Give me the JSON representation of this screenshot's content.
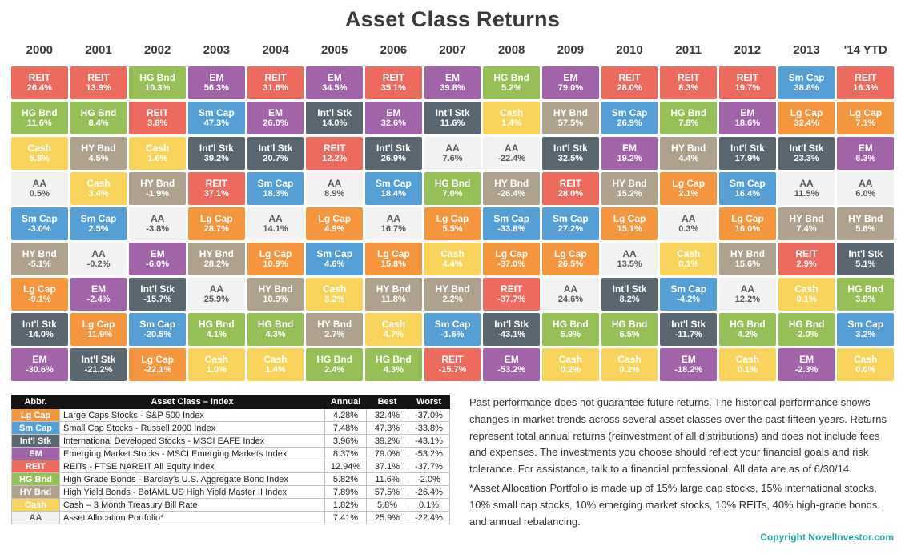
{
  "title": "Asset Class Returns",
  "asset_classes": {
    "Lg Cap": {
      "color": "#F5953D",
      "text": "#FFFFFF"
    },
    "Sm Cap": {
      "color": "#559FD6",
      "text": "#FFFFFF"
    },
    "Int'l Stk": {
      "color": "#5B6770",
      "text": "#FFFFFF"
    },
    "EM": {
      "color": "#A164A9",
      "text": "#FFFFFF"
    },
    "REIT": {
      "color": "#ED6A5E",
      "text": "#FFFFFF"
    },
    "HG Bnd": {
      "color": "#97BF58",
      "text": "#FFFFFF"
    },
    "HY Bnd": {
      "color": "#AEA28E",
      "text": "#FFFFFF"
    },
    "Cash": {
      "color": "#F9D45C",
      "text": "#FFFFFF"
    },
    "AA": {
      "color": "#F2F2F2",
      "text": "#595959"
    }
  },
  "chart_data": {
    "type": "table",
    "title": "Asset Class Returns",
    "years": [
      "2000",
      "2001",
      "2002",
      "2003",
      "2004",
      "2005",
      "2006",
      "2007",
      "2008",
      "2009",
      "2010",
      "2011",
      "2012",
      "2013",
      "'14 YTD"
    ],
    "columns": [
      {
        "year": "2000",
        "cells": [
          {
            "abbr": "REIT",
            "value": "26.4%"
          },
          {
            "abbr": "HG Bnd",
            "value": "11.6%"
          },
          {
            "abbr": "Cash",
            "value": "5.8%"
          },
          {
            "abbr": "AA",
            "value": "0.5%"
          },
          {
            "abbr": "Sm Cap",
            "value": "-3.0%"
          },
          {
            "abbr": "HY Bnd",
            "value": "-5.1%"
          },
          {
            "abbr": "Lg Cap",
            "value": "-9.1%"
          },
          {
            "abbr": "Int'l Stk",
            "value": "-14.0%"
          },
          {
            "abbr": "EM",
            "value": "-30.6%"
          }
        ]
      },
      {
        "year": "2001",
        "cells": [
          {
            "abbr": "REIT",
            "value": "13.9%"
          },
          {
            "abbr": "HG Bnd",
            "value": "8.4%"
          },
          {
            "abbr": "HY Bnd",
            "value": "4.5%"
          },
          {
            "abbr": "Cash",
            "value": "3.4%"
          },
          {
            "abbr": "Sm Cap",
            "value": "2.5%"
          },
          {
            "abbr": "AA",
            "value": "-0.2%"
          },
          {
            "abbr": "EM",
            "value": "-2.4%"
          },
          {
            "abbr": "Lg Cap",
            "value": "-11.9%"
          },
          {
            "abbr": "Int'l Stk",
            "value": "-21.2%"
          }
        ]
      },
      {
        "year": "2002",
        "cells": [
          {
            "abbr": "HG Bnd",
            "value": "10.3%"
          },
          {
            "abbr": "REIT",
            "value": "3.8%"
          },
          {
            "abbr": "Cash",
            "value": "1.6%"
          },
          {
            "abbr": "HY Bnd",
            "value": "-1.9%"
          },
          {
            "abbr": "AA",
            "value": "-3.8%"
          },
          {
            "abbr": "EM",
            "value": "-6.0%"
          },
          {
            "abbr": "Int'l Stk",
            "value": "-15.7%"
          },
          {
            "abbr": "Sm Cap",
            "value": "-20.5%"
          },
          {
            "abbr": "Lg Cap",
            "value": "-22.1%"
          }
        ]
      },
      {
        "year": "2003",
        "cells": [
          {
            "abbr": "EM",
            "value": "56.3%"
          },
          {
            "abbr": "Sm Cap",
            "value": "47.3%"
          },
          {
            "abbr": "Int'l Stk",
            "value": "39.2%"
          },
          {
            "abbr": "REIT",
            "value": "37.1%"
          },
          {
            "abbr": "Lg Cap",
            "value": "28.7%"
          },
          {
            "abbr": "HY Bnd",
            "value": "28.2%"
          },
          {
            "abbr": "AA",
            "value": "25.9%"
          },
          {
            "abbr": "HG Bnd",
            "value": "4.1%"
          },
          {
            "abbr": "Cash",
            "value": "1.0%"
          }
        ]
      },
      {
        "year": "2004",
        "cells": [
          {
            "abbr": "REIT",
            "value": "31.6%"
          },
          {
            "abbr": "EM",
            "value": "26.0%"
          },
          {
            "abbr": "Int'l Stk",
            "value": "20.7%"
          },
          {
            "abbr": "Sm Cap",
            "value": "18.3%"
          },
          {
            "abbr": "AA",
            "value": "14.1%"
          },
          {
            "abbr": "Lg Cap",
            "value": "10.9%"
          },
          {
            "abbr": "HY Bnd",
            "value": "10.9%"
          },
          {
            "abbr": "HG Bnd",
            "value": "4.3%"
          },
          {
            "abbr": "Cash",
            "value": "1.4%"
          }
        ]
      },
      {
        "year": "2005",
        "cells": [
          {
            "abbr": "EM",
            "value": "34.5%"
          },
          {
            "abbr": "Int'l Stk",
            "value": "14.0%"
          },
          {
            "abbr": "REIT",
            "value": "12.2%"
          },
          {
            "abbr": "AA",
            "value": "8.9%"
          },
          {
            "abbr": "Lg Cap",
            "value": "4.9%"
          },
          {
            "abbr": "Sm Cap",
            "value": "4.6%"
          },
          {
            "abbr": "Cash",
            "value": "3.2%"
          },
          {
            "abbr": "HY Bnd",
            "value": "2.7%"
          },
          {
            "abbr": "HG Bnd",
            "value": "2.4%"
          }
        ]
      },
      {
        "year": "2006",
        "cells": [
          {
            "abbr": "REIT",
            "value": "35.1%"
          },
          {
            "abbr": "EM",
            "value": "32.6%"
          },
          {
            "abbr": "Int'l Stk",
            "value": "26.9%"
          },
          {
            "abbr": "Sm Cap",
            "value": "18.4%"
          },
          {
            "abbr": "AA",
            "value": "16.7%"
          },
          {
            "abbr": "Lg Cap",
            "value": "15.8%"
          },
          {
            "abbr": "HY Bnd",
            "value": "11.8%"
          },
          {
            "abbr": "Cash",
            "value": "4.7%"
          },
          {
            "abbr": "HG Bnd",
            "value": "4.3%"
          }
        ]
      },
      {
        "year": "2007",
        "cells": [
          {
            "abbr": "EM",
            "value": "39.8%"
          },
          {
            "abbr": "Int'l Stk",
            "value": "11.6%"
          },
          {
            "abbr": "AA",
            "value": "7.6%"
          },
          {
            "abbr": "HG Bnd",
            "value": "7.0%"
          },
          {
            "abbr": "Lg Cap",
            "value": "5.5%"
          },
          {
            "abbr": "Cash",
            "value": "4.4%"
          },
          {
            "abbr": "HY Bnd",
            "value": "2.2%"
          },
          {
            "abbr": "Sm Cap",
            "value": "-1.6%"
          },
          {
            "abbr": "REIT",
            "value": "-15.7%"
          }
        ]
      },
      {
        "year": "2008",
        "cells": [
          {
            "abbr": "HG Bnd",
            "value": "5.2%"
          },
          {
            "abbr": "Cash",
            "value": "1.4%"
          },
          {
            "abbr": "AA",
            "value": "-22.4%"
          },
          {
            "abbr": "HY Bnd",
            "value": "-26.4%"
          },
          {
            "abbr": "Sm Cap",
            "value": "-33.8%"
          },
          {
            "abbr": "Lg Cap",
            "value": "-37.0%"
          },
          {
            "abbr": "REIT",
            "value": "-37.7%"
          },
          {
            "abbr": "Int'l Stk",
            "value": "-43.1%"
          },
          {
            "abbr": "EM",
            "value": "-53.2%"
          }
        ]
      },
      {
        "year": "2009",
        "cells": [
          {
            "abbr": "EM",
            "value": "79.0%"
          },
          {
            "abbr": "HY Bnd",
            "value": "57.5%"
          },
          {
            "abbr": "Int'l Stk",
            "value": "32.5%"
          },
          {
            "abbr": "REIT",
            "value": "28.0%"
          },
          {
            "abbr": "Sm Cap",
            "value": "27.2%"
          },
          {
            "abbr": "Lg Cap",
            "value": "26.5%"
          },
          {
            "abbr": "AA",
            "value": "24.6%"
          },
          {
            "abbr": "HG Bnd",
            "value": "5.9%"
          },
          {
            "abbr": "Cash",
            "value": "0.2%"
          }
        ]
      },
      {
        "year": "2010",
        "cells": [
          {
            "abbr": "REIT",
            "value": "28.0%"
          },
          {
            "abbr": "Sm Cap",
            "value": "26.9%"
          },
          {
            "abbr": "EM",
            "value": "19.2%"
          },
          {
            "abbr": "HY Bnd",
            "value": "15.2%"
          },
          {
            "abbr": "Lg Cap",
            "value": "15.1%"
          },
          {
            "abbr": "AA",
            "value": "13.5%"
          },
          {
            "abbr": "Int'l Stk",
            "value": "8.2%"
          },
          {
            "abbr": "HG Bnd",
            "value": "6.5%"
          },
          {
            "abbr": "Cash",
            "value": "0.2%"
          }
        ]
      },
      {
        "year": "2011",
        "cells": [
          {
            "abbr": "REIT",
            "value": "8.3%"
          },
          {
            "abbr": "HG Bnd",
            "value": "7.8%"
          },
          {
            "abbr": "HY Bnd",
            "value": "4.4%"
          },
          {
            "abbr": "Lg Cap",
            "value": "2.1%"
          },
          {
            "abbr": "AA",
            "value": "0.3%"
          },
          {
            "abbr": "Cash",
            "value": "0.1%"
          },
          {
            "abbr": "Sm Cap",
            "value": "-4.2%"
          },
          {
            "abbr": "Int'l Stk",
            "value": "-11.7%"
          },
          {
            "abbr": "EM",
            "value": "-18.2%"
          }
        ]
      },
      {
        "year": "2012",
        "cells": [
          {
            "abbr": "REIT",
            "value": "19.7%"
          },
          {
            "abbr": "EM",
            "value": "18.6%"
          },
          {
            "abbr": "Int'l Stk",
            "value": "17.9%"
          },
          {
            "abbr": "Sm Cap",
            "value": "16.4%"
          },
          {
            "abbr": "Lg Cap",
            "value": "16.0%"
          },
          {
            "abbr": "HY Bnd",
            "value": "15.6%"
          },
          {
            "abbr": "AA",
            "value": "12.2%"
          },
          {
            "abbr": "HG Bnd",
            "value": "4.2%"
          },
          {
            "abbr": "Cash",
            "value": "0.1%"
          }
        ]
      },
      {
        "year": "2013",
        "cells": [
          {
            "abbr": "Sm Cap",
            "value": "38.8%"
          },
          {
            "abbr": "Lg Cap",
            "value": "32.4%"
          },
          {
            "abbr": "Int'l Stk",
            "value": "23.3%"
          },
          {
            "abbr": "AA",
            "value": "11.5%"
          },
          {
            "abbr": "HY Bnd",
            "value": "7.4%"
          },
          {
            "abbr": "REIT",
            "value": "2.9%"
          },
          {
            "abbr": "Cash",
            "value": "0.1%"
          },
          {
            "abbr": "HG Bnd",
            "value": "-2.0%"
          },
          {
            "abbr": "EM",
            "value": "-2.3%"
          }
        ]
      },
      {
        "year": "'14 YTD",
        "cells": [
          {
            "abbr": "REIT",
            "value": "16.3%"
          },
          {
            "abbr": "Lg Cap",
            "value": "7.1%"
          },
          {
            "abbr": "EM",
            "value": "6.3%"
          },
          {
            "abbr": "AA",
            "value": "6.0%"
          },
          {
            "abbr": "HY Bnd",
            "value": "5.6%"
          },
          {
            "abbr": "Int'l Stk",
            "value": "5.1%"
          },
          {
            "abbr": "HG Bnd",
            "value": "3.9%"
          },
          {
            "abbr": "Sm Cap",
            "value": "3.2%"
          },
          {
            "abbr": "Cash",
            "value": "0.0%"
          }
        ]
      }
    ]
  },
  "legend": {
    "headers": [
      "Abbr.",
      "Asset Class – Index",
      "Annual",
      "Best",
      "Worst"
    ],
    "rows": [
      {
        "abbr": "Lg Cap",
        "name": "Large Caps Stocks - S&P 500 Index",
        "annual": "4.28%",
        "best": "32.4%",
        "worst": "-37.0%"
      },
      {
        "abbr": "Sm Cap",
        "name": "Small Cap Stocks - Russell 2000 Index",
        "annual": "7.48%",
        "best": "47.3%",
        "worst": "-33.8%"
      },
      {
        "abbr": "Int'l Stk",
        "name": "International Developed Stocks - MSCI EAFE Index",
        "annual": "3.96%",
        "best": "39.2%",
        "worst": "-43.1%"
      },
      {
        "abbr": "EM",
        "name": "Emerging Market Stocks - MSCI Emerging Markets Index",
        "annual": "8.37%",
        "best": "79.0%",
        "worst": "-53.2%"
      },
      {
        "abbr": "REIT",
        "name": "REITs - FTSE NAREIT All Equity Index",
        "annual": "12.94%",
        "best": "37.1%",
        "worst": "-37.7%"
      },
      {
        "abbr": "HG Bnd",
        "name": "High Grade Bonds - Barclay's U.S. Aggregate Bond Index",
        "annual": "5.82%",
        "best": "11.6%",
        "worst": "-2.0%"
      },
      {
        "abbr": "HY Bnd",
        "name": "High Yield Bonds - BofAML US High Yield Master II Index",
        "annual": "7.89%",
        "best": "57.5%",
        "worst": "-26.4%"
      },
      {
        "abbr": "Cash",
        "name": "Cash – 3 Month Treasury Bill Rate",
        "annual": "1.82%",
        "best": "5.8%",
        "worst": "0.1%"
      },
      {
        "abbr": "AA",
        "name": "Asset Allocation Portfolio*",
        "annual": "7.41%",
        "best": "25.9%",
        "worst": "-22.4%"
      }
    ]
  },
  "notes": {
    "paragraph1": "Past performance does not guarantee future returns. The historical performance shows changes in market trends across several asset classes over the past fifteen years. Returns represent total annual returns (reinvestment of all distributions) and does not include fees and expenses. The investments you choose should reflect your financial goals and risk tolerance. For assistance, talk to a financial professional. All data are as of 6/30/14.",
    "paragraph2": "*Asset Allocation Portfolio is made up of 15% large cap stocks, 15% international stocks, 10% small cap stocks, 10% emerging market stocks, 10% REITs, 40% high-grade bonds, and annual rebalancing."
  },
  "copyright": "Copyright NovelInvestor.com",
  "copyright_color": "#2AA5A0"
}
